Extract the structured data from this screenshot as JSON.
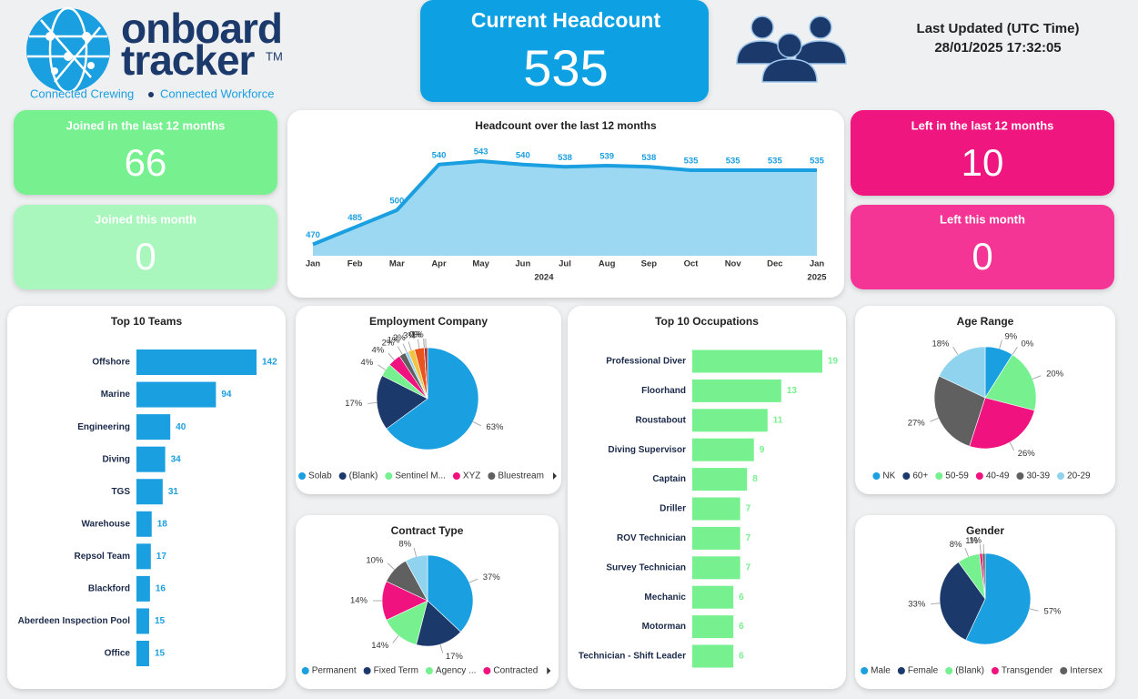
{
  "header": {
    "brand_line1": "onboard",
    "brand_line2": "tracker",
    "trademark": "TM",
    "tagline_left": "Connected Crewing",
    "tagline_right": "Connected Workforce",
    "last_updated_label": "Last Updated (UTC Time)",
    "last_updated_value": "28/01/2025 17:32:05"
  },
  "kpis": {
    "current_headcount": {
      "label": "Current Headcount",
      "value": 535
    },
    "joined_12_months": {
      "label": "Joined in the last 12 months",
      "value": 66
    },
    "joined_this_month": {
      "label": "Joined this month",
      "value": 0
    },
    "left_12_months": {
      "label": "Left in the last 12 months",
      "value": 10
    },
    "left_this_month": {
      "label": "Left this month",
      "value": 0
    }
  },
  "chart_data": [
    {
      "type": "line",
      "title": "Headcount over the last 12 months",
      "categories": [
        "Jan",
        "Feb",
        "Mar",
        "Apr",
        "May",
        "Jun",
        "Jul",
        "Aug",
        "Sep",
        "Oct",
        "Nov",
        "Dec",
        "Jan"
      ],
      "year_labels": [
        "2024",
        "2025"
      ],
      "values": [
        470,
        485,
        500,
        540,
        543,
        540,
        538,
        539,
        538,
        535,
        535,
        535,
        535
      ],
      "color": "#1a9fe0",
      "fill_color": "#9dd8f3"
    },
    {
      "type": "bar",
      "orientation": "horizontal",
      "title": "Top 10 Teams",
      "categories": [
        "Offshore",
        "Marine",
        "Engineering",
        "Diving",
        "TGS",
        "Warehouse",
        "Repsol Team",
        "Blackford",
        "Aberdeen Inspection Pool",
        "Office"
      ],
      "values": [
        142,
        94,
        40,
        34,
        31,
        18,
        17,
        16,
        15,
        15
      ],
      "color": "#1a9fe0"
    },
    {
      "type": "pie",
      "title": "Employment Company",
      "categories": [
        "Solab",
        "(Blank)",
        "Sentinel M...",
        "XYZ",
        "Bluestream",
        null,
        null,
        null,
        null,
        null,
        null
      ],
      "values": [
        63,
        17,
        4,
        4,
        2,
        1,
        2,
        3,
        0,
        0,
        1
      ],
      "value_labels": [
        "63%",
        "17%",
        "4%",
        "4%",
        "2%",
        "1%",
        "2%",
        "3%",
        "0%",
        "0%",
        "1%"
      ],
      "colors": [
        "#1a9fe0",
        "#1b3a6b",
        "#77f18f",
        "#f0127f",
        "#606060",
        "#8fd3ef",
        "#f5c342",
        "#e8541e",
        "#8a5ab8",
        "#d4b0ea",
        "#b03030"
      ]
    },
    {
      "type": "bar",
      "orientation": "horizontal",
      "title": "Top 10 Occupations",
      "categories": [
        "Professional Diver",
        "Floorhand",
        "Roustabout",
        "Diving Supervisor",
        "Captain",
        "Driller",
        "ROV Technician",
        "Survey Technician",
        "Mechanic",
        "Motorman",
        "Technician - Shift Leader"
      ],
      "values": [
        19,
        13,
        11,
        9,
        8,
        7,
        7,
        7,
        6,
        6,
        6
      ],
      "color": "#77f18f"
    },
    {
      "type": "pie",
      "title": "Age Range",
      "categories": [
        "NK",
        "60+",
        "50-59",
        "40-49",
        "30-39",
        "20-29"
      ],
      "values": [
        9,
        0,
        20,
        26,
        27,
        18
      ],
      "value_labels": [
        "9%",
        "0%",
        "20%",
        "26%",
        "27%",
        "18%"
      ],
      "colors": [
        "#1a9fe0",
        "#1b3a6b",
        "#77f18f",
        "#f0127f",
        "#606060",
        "#8fd3ef"
      ]
    },
    {
      "type": "pie",
      "title": "Contract Type",
      "categories": [
        "Permanent",
        "Fixed Term",
        "Agency ...",
        "Contracted",
        null,
        null
      ],
      "values": [
        37,
        17,
        14,
        14,
        10,
        8
      ],
      "value_labels": [
        "37%",
        "17%",
        "14%",
        "14%",
        "10%",
        "8%"
      ],
      "colors": [
        "#1a9fe0",
        "#1b3a6b",
        "#77f18f",
        "#f0127f",
        "#606060",
        "#8fd3ef"
      ]
    },
    {
      "type": "pie",
      "title": "Gender",
      "categories": [
        "Male",
        "Female",
        "(Blank)",
        "Transgender",
        "Intersex"
      ],
      "values": [
        57,
        33,
        8,
        1,
        1
      ],
      "value_labels": [
        "57%",
        "33%",
        "8%",
        "1%",
        "1%"
      ],
      "colors": [
        "#1a9fe0",
        "#1b3a6b",
        "#77f18f",
        "#f0127f",
        "#606060"
      ]
    }
  ]
}
